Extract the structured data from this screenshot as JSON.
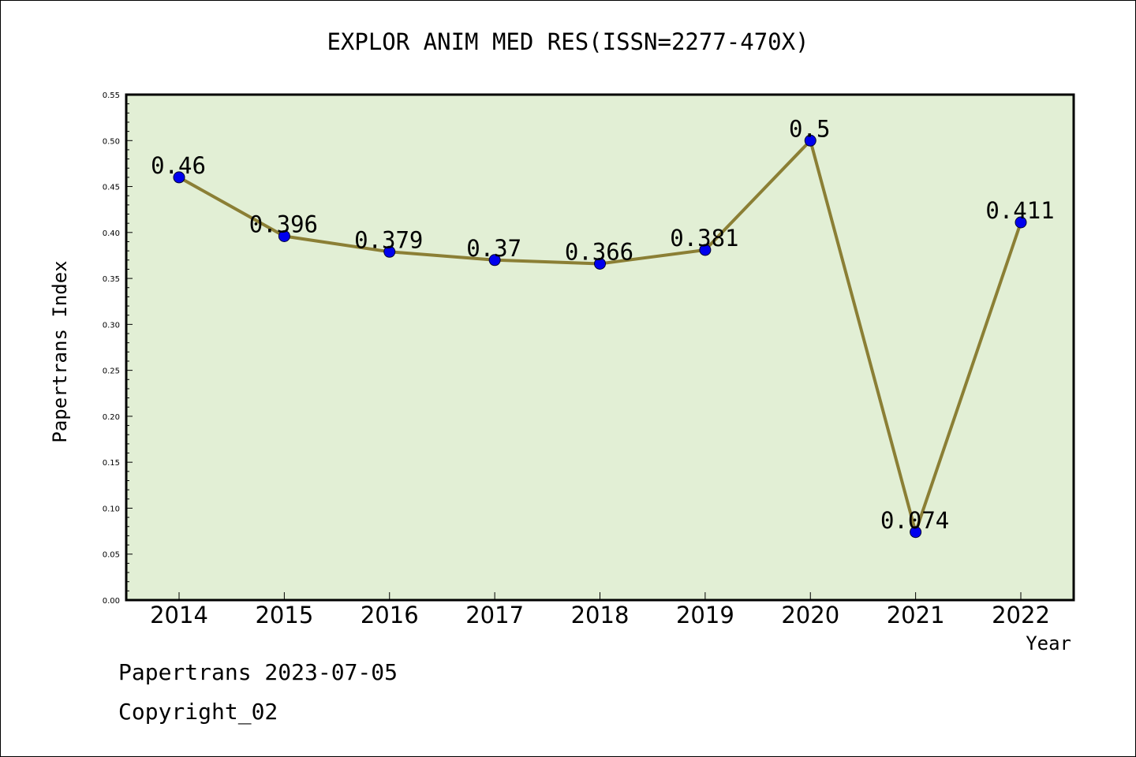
{
  "chart_data": {
    "type": "line",
    "title": "EXPLOR ANIM MED RES(ISSN=2277-470X)",
    "xlabel": "Year",
    "ylabel": "Papertrans Index",
    "categories": [
      "2014",
      "2015",
      "2016",
      "2017",
      "2018",
      "2019",
      "2020",
      "2021",
      "2022"
    ],
    "values": [
      0.46,
      0.396,
      0.379,
      0.37,
      0.366,
      0.381,
      0.5,
      0.074,
      0.411
    ],
    "data_labels": [
      "0.46",
      "0.396",
      "0.379",
      "0.37",
      "0.366",
      "0.381",
      "0.5",
      "0.074",
      "0.411"
    ],
    "ylim": [
      0,
      0.55
    ],
    "yticks": [
      "0.00",
      "0.05",
      "0.10",
      "0.15",
      "0.20",
      "0.25",
      "0.30",
      "0.35",
      "0.40",
      "0.45",
      "0.50",
      "0.55"
    ],
    "grid": false,
    "colors": {
      "plot_background": "#e2efd5",
      "line": "#8b7f35",
      "marker": "#0000ee"
    }
  },
  "footer": {
    "line1": "Papertrans 2023-07-05",
    "line2": "Copyright_02"
  }
}
